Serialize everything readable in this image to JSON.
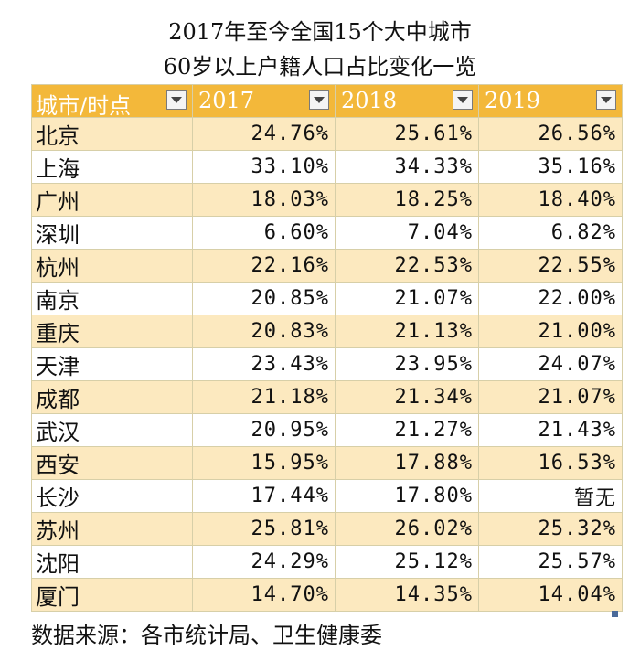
{
  "title_line1": "2017年至今全国15个大中城市",
  "title_line2": "60岁以上户籍人口占比变化一览",
  "table": {
    "headers": [
      "城市/时点",
      "2017",
      "2018",
      "2019"
    ],
    "rows": [
      {
        "city": "北京",
        "v2017": "24.76%",
        "v2018": "25.61%",
        "v2019": "26.56%"
      },
      {
        "city": "上海",
        "v2017": "33.10%",
        "v2018": "34.33%",
        "v2019": "35.16%"
      },
      {
        "city": "广州",
        "v2017": "18.03%",
        "v2018": "18.25%",
        "v2019": "18.40%"
      },
      {
        "city": "深圳",
        "v2017": "6.60%",
        "v2018": "7.04%",
        "v2019": "6.82%"
      },
      {
        "city": "杭州",
        "v2017": "22.16%",
        "v2018": "22.53%",
        "v2019": "22.55%"
      },
      {
        "city": "南京",
        "v2017": "20.85%",
        "v2018": "21.07%",
        "v2019": "22.00%"
      },
      {
        "city": "重庆",
        "v2017": "20.83%",
        "v2018": "21.13%",
        "v2019": "21.00%"
      },
      {
        "city": "天津",
        "v2017": "23.43%",
        "v2018": "23.95%",
        "v2019": "24.07%"
      },
      {
        "city": "成都",
        "v2017": "21.18%",
        "v2018": "21.34%",
        "v2019": "21.07%"
      },
      {
        "city": "武汉",
        "v2017": "20.95%",
        "v2018": "21.27%",
        "v2019": "21.43%"
      },
      {
        "city": "西安",
        "v2017": "15.95%",
        "v2018": "17.88%",
        "v2019": "16.53%"
      },
      {
        "city": "长沙",
        "v2017": "17.44%",
        "v2018": "17.80%",
        "v2019": "暂无"
      },
      {
        "city": "苏州",
        "v2017": "25.81%",
        "v2018": "26.02%",
        "v2019": "25.32%"
      },
      {
        "city": "沈阳",
        "v2017": "24.29%",
        "v2018": "25.12%",
        "v2019": "25.57%"
      },
      {
        "city": "厦门",
        "v2017": "14.70%",
        "v2018": "14.35%",
        "v2019": "14.04%"
      }
    ]
  },
  "source": "数据来源：各市统计局、卫生健康委",
  "colors": {
    "header_bg": "#f3b83a",
    "band_bg": "#fce9bf",
    "header_text": "#ffffff"
  },
  "icons": {
    "filter": "dropdown-arrow-icon"
  }
}
